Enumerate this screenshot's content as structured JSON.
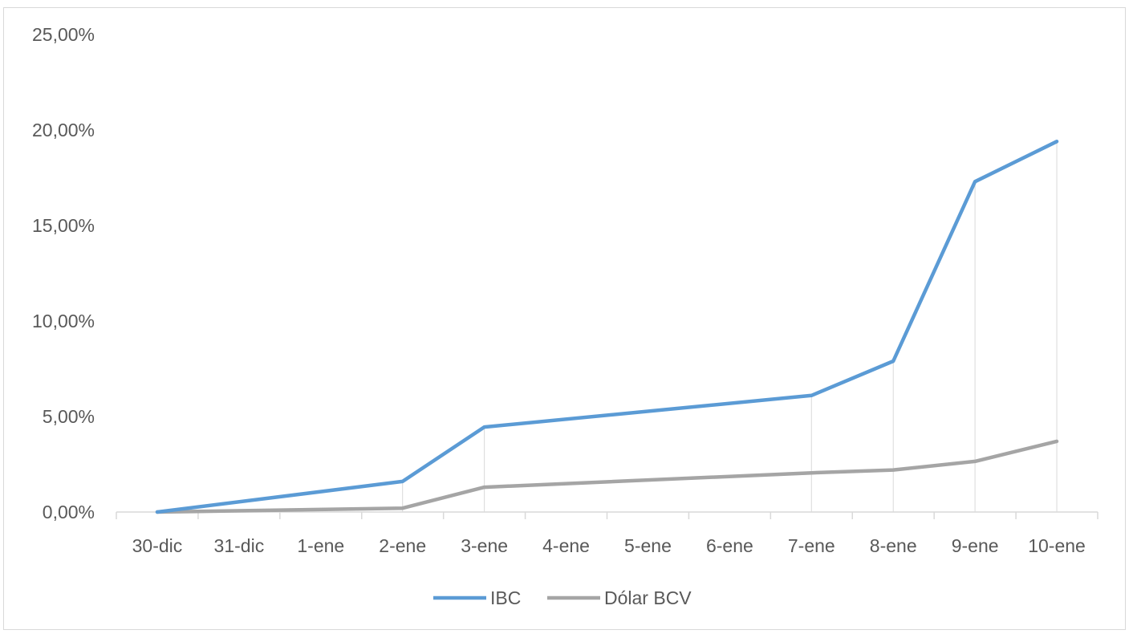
{
  "chart_data": {
    "type": "line",
    "categories": [
      "30-dic",
      "31-dic",
      "1-ene",
      "2-ene",
      "3-ene",
      "4-ene",
      "5-ene",
      "6-ene",
      "7-ene",
      "8-ene",
      "9-ene",
      "10-ene"
    ],
    "y_ticks": [
      "0,00%",
      "5,00%",
      "10,00%",
      "15,00%",
      "20,00%",
      "25,00%"
    ],
    "ylim": [
      0,
      25
    ],
    "grid": false,
    "legend_position": "bottom",
    "series": [
      {
        "name": "IBC",
        "color": "#5b9bd5",
        "points": [
          [
            0,
            0.0
          ],
          [
            3,
            1.6
          ],
          [
            4,
            4.45
          ],
          [
            8,
            6.1
          ],
          [
            9,
            7.9
          ],
          [
            10,
            17.3
          ],
          [
            11,
            19.4
          ]
        ]
      },
      {
        "name": "Dólar BCV",
        "color": "#a5a5a5",
        "points": [
          [
            0,
            0.0
          ],
          [
            3,
            0.2
          ],
          [
            4,
            1.3
          ],
          [
            8,
            2.05
          ],
          [
            9,
            2.2
          ],
          [
            10,
            2.65
          ],
          [
            11,
            3.7
          ]
        ]
      }
    ]
  }
}
